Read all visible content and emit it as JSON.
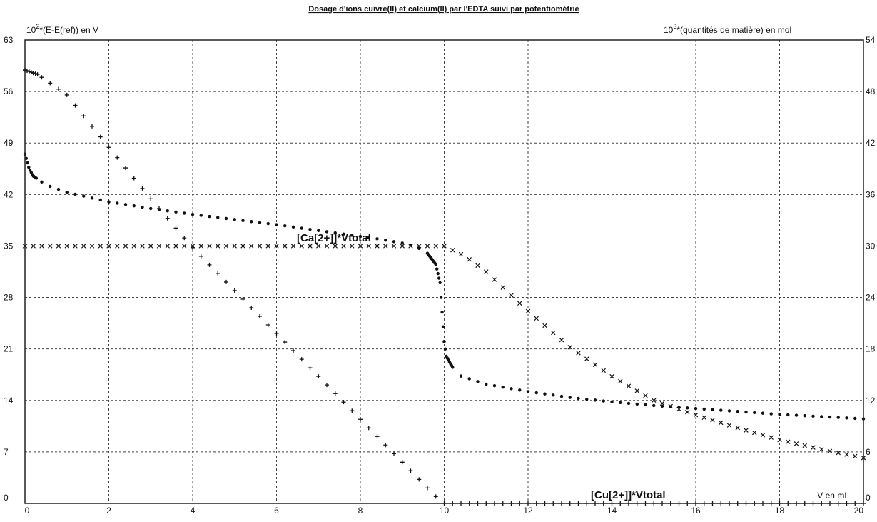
{
  "chart_data": {
    "type": "scatter",
    "title": "Dosage d'ions cuivre(II) et calcium(II) par l'EDTA suivi par potentiométrie",
    "ylabel_left": {
      "prefix": "10",
      "exp": "2",
      "rest": "*(E-E(ref)) en V"
    },
    "ylabel_right": {
      "prefix": "10",
      "exp": "3",
      "rest": "*(quantités de matière) en mol"
    },
    "xlabel": "V en mL",
    "xlim": [
      0,
      20
    ],
    "ylim_left": [
      0,
      63
    ],
    "ylim_right": [
      0,
      54
    ],
    "x_ticks": [
      "0",
      "2",
      "4",
      "6",
      "8",
      "10",
      "12",
      "14",
      "16",
      "18",
      "20"
    ],
    "y_left_ticks": [
      "0",
      "7",
      "14",
      "21",
      "28",
      "35",
      "42",
      "49",
      "56",
      "63"
    ],
    "y_right_ticks": [
      "0",
      "6",
      "12",
      "18",
      "24",
      "30",
      "36",
      "42",
      "48",
      "54"
    ],
    "grid": true,
    "series": [
      {
        "name": "",
        "axis": "left",
        "marker": "dot",
        "points": [
          [
            0,
            47.5
          ],
          [
            0.05,
            46.5
          ],
          [
            0.1,
            45.5
          ],
          [
            0.2,
            44.5
          ],
          [
            0.5,
            43.3
          ],
          [
            1,
            42.3
          ],
          [
            2,
            41.0
          ],
          [
            3,
            40.1
          ],
          [
            4,
            39.3
          ],
          [
            5,
            38.6
          ],
          [
            6,
            37.9
          ],
          [
            7,
            37.1
          ],
          [
            8,
            36.3
          ],
          [
            8.5,
            35.9
          ],
          [
            9,
            35.4
          ],
          [
            9.3,
            35.0
          ],
          [
            9.6,
            34.0
          ],
          [
            9.8,
            32.5
          ],
          [
            9.9,
            30.0
          ],
          [
            9.95,
            26.0
          ],
          [
            10,
            22.0
          ],
          [
            10.05,
            20.0
          ],
          [
            10.1,
            19.5
          ],
          [
            10.3,
            17.5
          ],
          [
            11,
            16.2
          ],
          [
            12,
            15.2
          ],
          [
            13,
            14.4
          ],
          [
            14,
            13.8
          ],
          [
            15,
            13.3
          ],
          [
            16,
            12.9
          ],
          [
            17,
            12.5
          ],
          [
            18,
            12.1
          ],
          [
            19,
            11.8
          ],
          [
            20,
            11.5
          ]
        ]
      },
      {
        "name": "[Cu[2+]]*Vtotal",
        "axis": "right",
        "marker": "plus",
        "points": [
          [
            0,
            50.5
          ],
          [
            0.3,
            50.0
          ],
          [
            1,
            47.6
          ],
          [
            2,
            41.5
          ],
          [
            3,
            35.5
          ],
          [
            4,
            29.8
          ],
          [
            5,
            24.8
          ],
          [
            6,
            19.8
          ],
          [
            7,
            14.8
          ],
          [
            8,
            9.8
          ],
          [
            9,
            4.8
          ],
          [
            9.8,
            0.8
          ],
          [
            10,
            0
          ],
          [
            12,
            0
          ],
          [
            14,
            0
          ],
          [
            16,
            0
          ],
          [
            18,
            0
          ],
          [
            20,
            0
          ]
        ]
      },
      {
        "name": "[Ca[2+]]*Vtotal",
        "axis": "right",
        "marker": "cross",
        "points": [
          [
            0,
            30
          ],
          [
            10,
            30
          ],
          [
            10.5,
            28.8
          ],
          [
            11,
            27.0
          ],
          [
            12,
            22.4
          ],
          [
            13,
            18.2
          ],
          [
            14,
            14.8
          ],
          [
            15,
            12.0
          ],
          [
            16,
            10.3
          ],
          [
            17,
            8.8
          ],
          [
            18,
            7.4
          ],
          [
            19,
            6.3
          ],
          [
            20,
            5.3
          ]
        ]
      }
    ]
  }
}
